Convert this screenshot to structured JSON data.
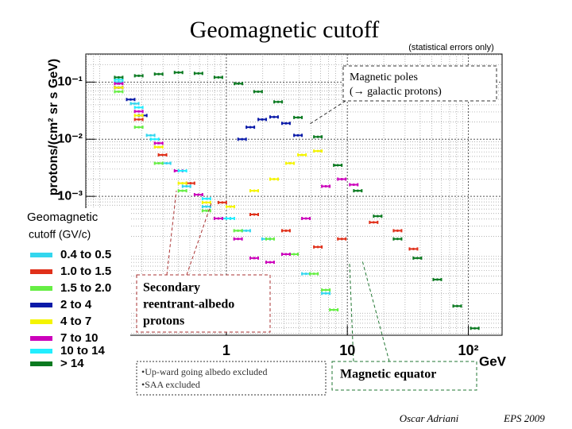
{
  "chart_data": {
    "type": "scatter",
    "title": "Geomagnetic cutoff",
    "subtitle": "(statistical errors only)",
    "y_label": "protons/(cm² sr s GeV)",
    "x_label": "GeV",
    "log_x": true,
    "log_y": true,
    "grid": true,
    "xlim": [
      0.069,
      190
    ],
    "ylim": [
      3.7e-06,
      0.31
    ],
    "xticks": [
      1,
      10,
      {
        "value": 100,
        "label": "10²"
      }
    ],
    "yticks": [
      {
        "value": 0.1,
        "label": "10⁻¹"
      },
      {
        "value": 0.01,
        "label": "10⁻²"
      },
      {
        "value": 0.001,
        "label": "10⁻³"
      }
    ],
    "legend_title": [
      "Geomagnetic",
      "cutoff (GV/c)"
    ],
    "series": [
      {
        "name": "0.4 to 0.5",
        "color": "#33d6ee",
        "x": [
          0.129,
          0.175,
          0.237,
          0.321,
          0.469,
          0.685,
          1,
          1.46,
          2.13,
          3.11,
          4.55,
          6.64
        ],
        "values": [
          0.1,
          0.042,
          0.0117,
          0.0038,
          0.0015,
          0.00066,
          0.00041,
          0.00025,
          0.00018,
          9.7e-05,
          4.4e-05,
          2e-05
        ]
      },
      {
        "name": "1.0 to 1.5",
        "color": "#e0301a",
        "x": [
          0.129,
          0.189,
          0.297,
          0.506,
          0.927,
          1.7,
          3.11,
          5.71,
          9.0,
          16.5,
          26,
          35.2
        ],
        "values": [
          0.08,
          0.0222,
          0.0053,
          0.0017,
          0.00078,
          0.00048,
          0.00025,
          0.00013,
          0.00018,
          0.00035,
          0.00025,
          0.00012
        ]
      },
      {
        "name": "1.5 to 2.0",
        "color": "#66ee44",
        "x": [
          0.129,
          0.189,
          0.276,
          0.434,
          0.685,
          1.25,
          2.3,
          3.62,
          5.3,
          6.64,
          7.73
        ],
        "values": [
          0.068,
          0.0162,
          0.0038,
          0.00125,
          0.00056,
          0.00025,
          0.00018,
          9.7e-05,
          4.4e-05,
          2.3e-05,
          1.03e-05
        ]
      },
      {
        "name": "2 to 4",
        "color": "#0a1aa8",
        "x": [
          0.129,
          0.162,
          0.204,
          1.35,
          1.58,
          1.98,
          2.48,
          3.11,
          3.91
        ],
        "values": [
          0.08,
          0.0495,
          0.026,
          0.01,
          0.0162,
          0.0222,
          0.0245,
          0.019,
          0.0117
        ]
      },
      {
        "name": "4 to 7",
        "color": "#f4f400",
        "x": [
          0.129,
          0.189,
          0.276,
          0.434,
          0.685,
          1.08,
          1.7,
          2.48,
          3.36,
          4.22,
          5.71
        ],
        "values": [
          0.08,
          0.026,
          0.0073,
          0.0017,
          0.00078,
          0.00066,
          0.00125,
          0.002,
          0.0038,
          0.0053,
          0.0062
        ]
      },
      {
        "name": "7 to 10",
        "color": "#cc00bb",
        "x": [
          0.129,
          0.189,
          0.276,
          0.403,
          0.589,
          0.86,
          1.25,
          1.7,
          2.3,
          3.11,
          4.55,
          6.64,
          9.0,
          11.3
        ],
        "values": [
          0.094,
          0.0306,
          0.0085,
          0.0028,
          0.00107,
          0.00041,
          0.00018,
          8.3e-05,
          7e-05,
          9.7e-05,
          0.00041,
          0.0015,
          0.002,
          0.0016
        ]
      },
      {
        "name": "10 to 14",
        "color": "#22eeff",
        "x": [
          0.129,
          0.189,
          0.256,
          0.434,
          0.685,
          1.08
        ],
        "values": [
          0.11,
          0.036,
          0.01,
          0.0028,
          0.00091,
          0.00041
        ]
      },
      {
        "name": "> 14",
        "color": "#0a7a20",
        "x": [
          0.129,
          0.189,
          0.276,
          0.403,
          0.589,
          0.86,
          1.26,
          1.83,
          2.68,
          3.91,
          5.71,
          8.34,
          12.2,
          17.8,
          26,
          37.9,
          55.4,
          80.9,
          113
        ],
        "values": [
          0.121,
          0.129,
          0.138,
          0.147,
          0.142,
          0.121,
          0.094,
          0.068,
          0.045,
          0.024,
          0.011,
          0.0035,
          0.00125,
          0.00045,
          0.00018,
          8.3e-05,
          3.5e-05,
          1.2e-05,
          4.9e-06
        ]
      }
    ],
    "annotations": {
      "poles": [
        "Magnetic poles",
        "(→ galactic protons)"
      ],
      "albedo": [
        "Secondary",
        "reentrant-albedo",
        "protons"
      ],
      "notes": [
        "•Up-ward going albedo excluded",
        "•SAA excluded"
      ],
      "equator": "Magnetic equator"
    },
    "author": "Oscar Adriani",
    "event": "EPS 2009"
  }
}
